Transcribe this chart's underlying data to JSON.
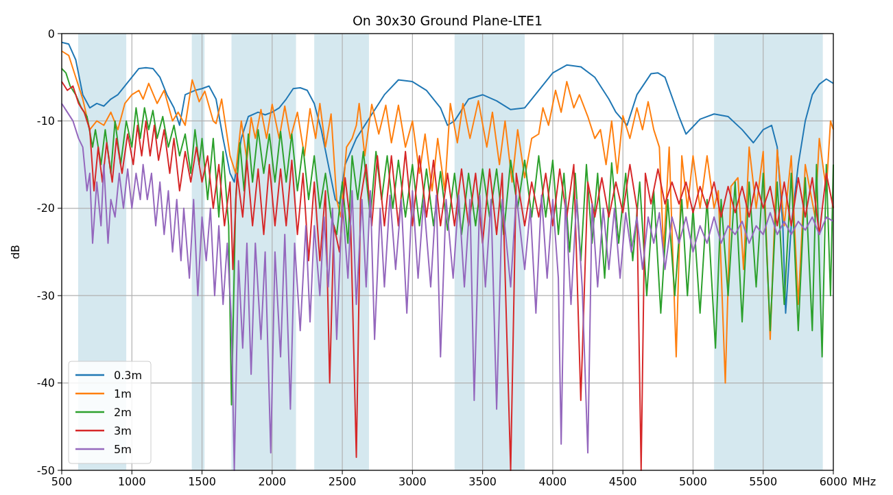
{
  "chart_data": {
    "type": "line",
    "title": "On 30x30 Ground Plane-LTE1",
    "xlabel": "MHz",
    "ylabel": "dB",
    "xlim": [
      500,
      6000
    ],
    "xticks": [
      500,
      1000,
      1500,
      2000,
      2500,
      3000,
      3500,
      4000,
      4500,
      5000,
      5500,
      6000
    ],
    "ylim": [
      -50,
      0
    ],
    "yticks": [
      -50,
      -40,
      -30,
      -20,
      -10,
      0
    ],
    "grid": true,
    "legend": "bottom left",
    "bands": [
      {
        "axis": "x",
        "from": 617,
        "to": 960,
        "color": "#d5e8ef"
      },
      {
        "axis": "x",
        "from": 1427,
        "to": 1518,
        "color": "#d5e8ef"
      },
      {
        "axis": "x",
        "from": 1710,
        "to": 2170,
        "color": "#d5e8ef"
      },
      {
        "axis": "x",
        "from": 2300,
        "to": 2690,
        "color": "#d5e8ef"
      },
      {
        "axis": "x",
        "from": 3300,
        "to": 3800,
        "color": "#d5e8ef"
      },
      {
        "axis": "x",
        "from": 5150,
        "to": 5925,
        "color": "#d5e8ef"
      }
    ],
    "series": [
      {
        "name": "0.3m",
        "color": "#1f77b4",
        "x": [
          500,
          550,
          600,
          650,
          700,
          750,
          800,
          850,
          900,
          950,
          1000,
          1050,
          1100,
          1150,
          1200,
          1250,
          1300,
          1340,
          1380,
          1450,
          1500,
          1550,
          1600,
          1650,
          1700,
          1730,
          1780,
          1830,
          1900,
          1950,
          2000,
          2050,
          2100,
          2150,
          2200,
          2250,
          2300,
          2350,
          2400,
          2450,
          2480,
          2520,
          2600,
          2700,
          2800,
          2900,
          3000,
          3100,
          3200,
          3250,
          3300,
          3400,
          3500,
          3600,
          3700,
          3800,
          3900,
          4000,
          4100,
          4200,
          4300,
          4400,
          4450,
          4530,
          4600,
          4700,
          4750,
          4800,
          4900,
          4950,
          5050,
          5150,
          5250,
          5350,
          5430,
          5500,
          5560,
          5600,
          5640,
          5660,
          5700,
          5750,
          5800,
          5850,
          5900,
          5950,
          6000
        ],
        "values": [
          -1,
          -1.2,
          -3,
          -7,
          -8.5,
          -8,
          -8.3,
          -7.5,
          -7,
          -6,
          -5,
          -4,
          -3.9,
          -4,
          -5,
          -7,
          -8.5,
          -10.5,
          -7,
          -6.5,
          -6.3,
          -6,
          -7.5,
          -12,
          -16,
          -17,
          -12,
          -9.5,
          -9,
          -9.3,
          -9,
          -8.5,
          -7.5,
          -6.3,
          -6.2,
          -6.5,
          -8,
          -11,
          -15,
          -19,
          -19.5,
          -15,
          -12,
          -9.5,
          -7,
          -5.3,
          -5.5,
          -6.5,
          -8.5,
          -10.5,
          -10,
          -7.5,
          -7,
          -7.7,
          -8.7,
          -8.5,
          -6.5,
          -4.5,
          -3.6,
          -3.8,
          -5,
          -7.5,
          -9,
          -10.5,
          -7,
          -4.6,
          -4.5,
          -5,
          -9.5,
          -11.5,
          -9.8,
          -9.2,
          -9.5,
          -11,
          -12.5,
          -11,
          -10.5,
          -13,
          -22,
          -32,
          -22,
          -15,
          -10,
          -7,
          -5.8,
          -5.2,
          -5.7
        ]
      },
      {
        "name": "1m",
        "color": "#ff7f0e",
        "x": [
          500,
          550,
          600,
          650,
          700,
          750,
          800,
          850,
          900,
          950,
          1000,
          1050,
          1080,
          1120,
          1180,
          1230,
          1290,
          1330,
          1380,
          1430,
          1480,
          1520,
          1580,
          1600,
          1640,
          1700,
          1740,
          1780,
          1820,
          1850,
          1880,
          1920,
          1960,
          2000,
          2050,
          2090,
          2130,
          2180,
          2230,
          2270,
          2310,
          2340,
          2380,
          2420,
          2460,
          2490,
          2530,
          2570,
          2600,
          2620,
          2660,
          2710,
          2760,
          2810,
          2850,
          2900,
          2950,
          3000,
          3050,
          3090,
          3140,
          3180,
          3230,
          3270,
          3320,
          3360,
          3410,
          3470,
          3530,
          3570,
          3620,
          3660,
          3710,
          3750,
          3800,
          3850,
          3900,
          3930,
          3970,
          4020,
          4060,
          4100,
          4150,
          4190,
          4250,
          4300,
          4340,
          4380,
          4420,
          4460,
          4500,
          4550,
          4600,
          4640,
          4680,
          4720,
          4760,
          4790,
          4830,
          4880,
          4920,
          4960,
          5000,
          5050,
          5100,
          5150,
          5180,
          5230,
          5270,
          5320,
          5360,
          5400,
          5450,
          5500,
          5550,
          5600,
          5650,
          5700,
          5750,
          5800,
          5870,
          5900,
          5950,
          5980,
          6000
        ],
        "values": [
          -2,
          -2.5,
          -5,
          -7.5,
          -11,
          -10,
          -10.5,
          -9,
          -11,
          -8,
          -7,
          -6.5,
          -7.5,
          -5.7,
          -8,
          -6.5,
          -10,
          -9,
          -10.5,
          -5.3,
          -7.8,
          -6.6,
          -10,
          -10.3,
          -7.5,
          -14,
          -16,
          -10,
          -14.5,
          -9.6,
          -12,
          -8.7,
          -12,
          -8.1,
          -12,
          -8.3,
          -12,
          -9,
          -14,
          -8.6,
          -12,
          -8,
          -13,
          -9.2,
          -19,
          -21,
          -13,
          -12,
          -10.5,
          -8,
          -14,
          -8.1,
          -11.5,
          -8.2,
          -12.5,
          -8.2,
          -13,
          -10,
          -16,
          -11.5,
          -18,
          -12,
          -18,
          -8,
          -12.5,
          -8,
          -12,
          -7.7,
          -13,
          -9,
          -15,
          -10,
          -17,
          -11,
          -16.5,
          -12,
          -11.5,
          -8.5,
          -10.5,
          -6.5,
          -9,
          -5.5,
          -8.5,
          -7,
          -9.5,
          -12,
          -11,
          -15,
          -10,
          -16,
          -9.4,
          -12,
          -8.5,
          -11,
          -7.8,
          -11,
          -13,
          -25,
          -13,
          -37,
          -14,
          -20,
          -14,
          -20,
          -14,
          -20,
          -18,
          -40,
          -17.5,
          -16.5,
          -27,
          -13,
          -20,
          -13.5,
          -35,
          -13.3,
          -22,
          -14,
          -31,
          -15,
          -21,
          -12,
          -18,
          -10,
          -11
        ]
      },
      {
        "name": "2m",
        "color": "#2ca02c",
        "x": [
          500,
          530,
          560,
          600,
          640,
          680,
          720,
          740,
          780,
          810,
          850,
          880,
          920,
          960,
          1000,
          1030,
          1060,
          1090,
          1120,
          1150,
          1180,
          1220,
          1260,
          1300,
          1340,
          1380,
          1420,
          1450,
          1480,
          1500,
          1540,
          1580,
          1620,
          1650,
          1690,
          1710,
          1740,
          1770,
          1800,
          1830,
          1860,
          1900,
          1940,
          1980,
          2020,
          2060,
          2100,
          2140,
          2180,
          2220,
          2260,
          2300,
          2340,
          2380,
          2420,
          2460,
          2500,
          2540,
          2570,
          2610,
          2650,
          2700,
          2740,
          2780,
          2820,
          2860,
          2900,
          2950,
          3000,
          3050,
          3100,
          3150,
          3200,
          3250,
          3300,
          3350,
          3400,
          3450,
          3500,
          3550,
          3600,
          3650,
          3700,
          3750,
          3800,
          3850,
          3900,
          3950,
          4000,
          4040,
          4080,
          4120,
          4160,
          4200,
          4240,
          4280,
          4320,
          4370,
          4420,
          4470,
          4520,
          4570,
          4620,
          4670,
          4720,
          4770,
          4820,
          4870,
          4920,
          4960,
          5000,
          5050,
          5100,
          5160,
          5200,
          5250,
          5300,
          5350,
          5400,
          5450,
          5500,
          5550,
          5600,
          5650,
          5700,
          5750,
          5800,
          5850,
          5880,
          5920,
          5950,
          5980,
          6000
        ],
        "values": [
          -4,
          -4.5,
          -6,
          -7,
          -8.5,
          -9.5,
          -13,
          -11,
          -15,
          -11,
          -16,
          -10,
          -15,
          -10,
          -13,
          -8.5,
          -12,
          -8.5,
          -11,
          -8.8,
          -12,
          -9.5,
          -13,
          -10.5,
          -14,
          -11.5,
          -16,
          -11,
          -15,
          -12,
          -19,
          -12,
          -21,
          -13.5,
          -22,
          -42.5,
          -19,
          -12.5,
          -18,
          -11.5,
          -17,
          -11,
          -16,
          -11.5,
          -17,
          -11.2,
          -17,
          -11.5,
          -18,
          -13,
          -19,
          -14,
          -20,
          -16,
          -21,
          -23,
          -17,
          -24,
          -14,
          -19,
          -13.5,
          -21,
          -13.5,
          -19,
          -14,
          -20,
          -14.5,
          -21,
          -15,
          -22,
          -15.5,
          -22,
          -15.8,
          -22.5,
          -16,
          -23,
          -16,
          -22,
          -15.5,
          -21,
          -15.5,
          -23,
          -14.5,
          -20,
          -14.5,
          -21,
          -14,
          -21,
          -14.5,
          -23,
          -16,
          -25,
          -16,
          -26,
          -15,
          -24,
          -16,
          -28,
          -14.8,
          -24,
          -16,
          -26,
          -17,
          -30,
          -18,
          -32,
          -19,
          -30,
          -19,
          -30,
          -20,
          -32,
          -19,
          -36,
          -19,
          -30,
          -17,
          -33,
          -17,
          -29,
          -16,
          -34,
          -17,
          -31,
          -16,
          -34,
          -16.5,
          -34,
          -15,
          -37,
          -15,
          -30,
          -15
        ]
      },
      {
        "name": "3m",
        "color": "#d62728",
        "x": [
          500,
          540,
          580,
          620,
          660,
          700,
          730,
          760,
          790,
          820,
          860,
          890,
          930,
          970,
          1010,
          1040,
          1070,
          1100,
          1130,
          1160,
          1190,
          1230,
          1270,
          1300,
          1340,
          1380,
          1420,
          1460,
          1500,
          1540,
          1580,
          1620,
          1660,
          1700,
          1720,
          1750,
          1790,
          1820,
          1860,
          1900,
          1940,
          1980,
          2020,
          2060,
          2100,
          2140,
          2180,
          2220,
          2260,
          2300,
          2340,
          2380,
          2410,
          2440,
          2480,
          2520,
          2560,
          2600,
          2630,
          2670,
          2710,
          2750,
          2800,
          2850,
          2900,
          2950,
          3000,
          3050,
          3100,
          3150,
          3200,
          3250,
          3300,
          3350,
          3400,
          3450,
          3500,
          3550,
          3600,
          3640,
          3700,
          3740,
          3800,
          3850,
          3900,
          3950,
          4000,
          4050,
          4100,
          4150,
          4200,
          4250,
          4300,
          4350,
          4400,
          4450,
          4500,
          4550,
          4600,
          4630,
          4660,
          4700,
          4750,
          4800,
          4850,
          4900,
          4950,
          5000,
          5050,
          5100,
          5150,
          5200,
          5250,
          5300,
          5350,
          5400,
          5450,
          5500,
          5550,
          5600,
          5650,
          5700,
          5750,
          5800,
          5850,
          5900,
          5950,
          6000
        ],
        "values": [
          -5.5,
          -6.5,
          -6,
          -8,
          -9,
          -11,
          -18,
          -13,
          -17,
          -12.5,
          -17,
          -12,
          -16,
          -11.5,
          -15,
          -10.5,
          -14,
          -10,
          -14,
          -10.5,
          -14.5,
          -11,
          -16,
          -12,
          -18,
          -13.5,
          -17,
          -13,
          -17,
          -14,
          -20,
          -15,
          -22,
          -17,
          -27,
          -16,
          -21,
          -14.5,
          -22,
          -15.5,
          -23,
          -15,
          -22,
          -15.5,
          -22,
          -14.5,
          -23,
          -16,
          -26,
          -17,
          -26,
          -18,
          -40,
          -22,
          -25,
          -16.5,
          -22,
          -48.5,
          -19,
          -15,
          -22,
          -14,
          -22,
          -14,
          -22,
          -13.5,
          -22,
          -14,
          -21,
          -14.5,
          -22,
          -16,
          -22,
          -15.5,
          -22,
          -16,
          -24,
          -15.5,
          -23,
          -16,
          -50,
          -16,
          -22,
          -17,
          -21,
          -16,
          -22,
          -15.5,
          -21,
          -15,
          -42,
          -17,
          -21,
          -16.5,
          -21,
          -17,
          -20.5,
          -15,
          -20,
          -50,
          -16,
          -19.5,
          -15.5,
          -19.5,
          -17,
          -19.5,
          -17,
          -20.5,
          -17.5,
          -20,
          -17,
          -21,
          -17.5,
          -20.5,
          -17.5,
          -21,
          -17,
          -20,
          -17.5,
          -22,
          -17,
          -22,
          -16.5,
          -21,
          -16.5,
          -23,
          -16,
          -20
        ]
      },
      {
        "name": "5m",
        "color": "#9467bd",
        "x": [
          500,
          540,
          580,
          620,
          650,
          680,
          700,
          720,
          750,
          780,
          800,
          830,
          850,
          880,
          910,
          940,
          970,
          1000,
          1030,
          1060,
          1080,
          1110,
          1140,
          1170,
          1200,
          1230,
          1260,
          1290,
          1320,
          1350,
          1370,
          1410,
          1440,
          1470,
          1500,
          1530,
          1560,
          1590,
          1620,
          1650,
          1680,
          1710,
          1730,
          1760,
          1790,
          1820,
          1850,
          1880,
          1920,
          1950,
          1990,
          2020,
          2060,
          2090,
          2130,
          2160,
          2200,
          2240,
          2270,
          2300,
          2340,
          2370,
          2400,
          2430,
          2460,
          2500,
          2540,
          2570,
          2600,
          2640,
          2670,
          2700,
          2730,
          2770,
          2800,
          2840,
          2880,
          2920,
          2960,
          3000,
          3040,
          3080,
          3130,
          3170,
          3200,
          3240,
          3290,
          3330,
          3370,
          3410,
          3440,
          3480,
          3520,
          3560,
          3600,
          3640,
          3700,
          3740,
          3800,
          3840,
          3880,
          3920,
          3960,
          4000,
          4040,
          4060,
          4090,
          4130,
          4170,
          4210,
          4250,
          4280,
          4320,
          4360,
          4400,
          4440,
          4480,
          4520,
          4560,
          4600,
          4640,
          4680,
          4720,
          4760,
          4800,
          4850,
          4900,
          4950,
          5000,
          5050,
          5100,
          5150,
          5200,
          5250,
          5300,
          5350,
          5400,
          5450,
          5500,
          5550,
          5600,
          5650,
          5700,
          5750,
          5800,
          5850,
          5900,
          5950,
          6000
        ],
        "values": [
          -8,
          -9,
          -10,
          -12,
          -13,
          -18,
          -16,
          -24,
          -17,
          -22,
          -15,
          -24,
          -19,
          -21,
          -16,
          -20,
          -15.5,
          -20,
          -16,
          -19,
          -15,
          -19,
          -16,
          -22,
          -17,
          -23,
          -18,
          -25,
          -19,
          -26,
          -20,
          -28,
          -19,
          -30,
          -21,
          -26,
          -20,
          -30,
          -22,
          -31,
          -24,
          -33,
          -50,
          -26,
          -36,
          -24,
          -39,
          -24,
          -35,
          -25,
          -48,
          -25,
          -37,
          -23,
          -43,
          -24,
          -34,
          -22,
          -33,
          -22,
          -30,
          -21,
          -29,
          -20,
          -35,
          -19,
          -28,
          -18,
          -31,
          -19,
          -29,
          -18,
          -35,
          -20,
          -29,
          -18.5,
          -27,
          -19,
          -32,
          -18,
          -28,
          -19,
          -29,
          -18.5,
          -37,
          -19,
          -28,
          -18.5,
          -29,
          -19,
          -42,
          -18.5,
          -29,
          -19,
          -43,
          -19,
          -29,
          -18.5,
          -27,
          -20,
          -32,
          -18.5,
          -28,
          -19,
          -28,
          -47,
          -19,
          -31,
          -19,
          -29,
          -48,
          -19.5,
          -29,
          -20,
          -27,
          -20,
          -28,
          -20.5,
          -25,
          -21,
          -27,
          -21,
          -24,
          -20.5,
          -27,
          -21,
          -24,
          -21,
          -25,
          -22,
          -24,
          -21,
          -24,
          -22,
          -23,
          -21.5,
          -24,
          -22,
          -23,
          -20.5,
          -23,
          -21.5,
          -23,
          -21.5,
          -22.5,
          -21,
          -23,
          -21,
          -21.5
        ]
      }
    ]
  }
}
